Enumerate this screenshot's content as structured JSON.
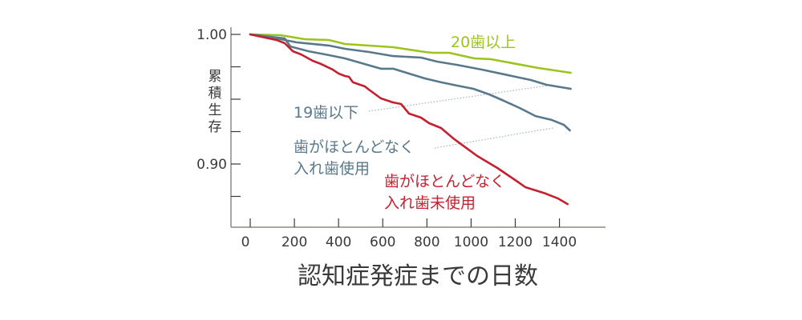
{
  "chart_data": {
    "type": "line",
    "title": "",
    "xlabel": "認知症発症までの日数",
    "ylabel": "累積生存",
    "xlim": [
      -40,
      1600
    ],
    "ylim": [
      0.853,
      1.0
    ],
    "x_ticks": [
      0,
      200,
      400,
      600,
      800,
      1000,
      1200,
      1400
    ],
    "x_tick_labels": [
      "0",
      "200",
      "400",
      "600",
      "800",
      "1000",
      "1200",
      "1400"
    ],
    "y_ticks": [
      1.0,
      0.975,
      0.95,
      0.925,
      0.9,
      0.875
    ],
    "y_tick_labels": [
      "1.00",
      "",
      "",
      "",
      "0.90",
      ""
    ],
    "grid": false,
    "series": [
      {
        "name": "20歯以上",
        "label_lines": [
          "20歯以上"
        ],
        "color": "#9dc31e",
        "x": [
          0,
          138,
          247,
          356,
          429,
          647,
          792,
          828,
          901,
          1015,
          1088,
          1305,
          1451
        ],
        "y": [
          1.0,
          0.9994,
          0.9963,
          0.9957,
          0.9926,
          0.9901,
          0.9864,
          0.9858,
          0.9858,
          0.9815,
          0.9809,
          0.9741,
          0.9704
        ]
      },
      {
        "name": "19歯以下",
        "label_lines": [
          "19歯以下"
        ],
        "color": "#58798b",
        "x": [
          0,
          102,
          211,
          356,
          429,
          538,
          647,
          774,
          846,
          937,
          1051,
          1270,
          1342,
          1451
        ],
        "y": [
          1.0,
          0.9975,
          0.9938,
          0.9914,
          0.9889,
          0.9864,
          0.9833,
          0.9821,
          0.979,
          0.9765,
          0.9728,
          0.9648,
          0.9611,
          0.958
        ]
      },
      {
        "name": "歯がほとんどなく入れ歯使用",
        "label_lines": [
          "歯がほとんどなく",
          "入れ歯使用"
        ],
        "color": "#58798b",
        "x": [
          0,
          156,
          182,
          265,
          356,
          429,
          592,
          647,
          792,
          865,
          937,
          1010,
          1082,
          1140,
          1220,
          1292,
          1365,
          1420,
          1447
        ],
        "y": [
          1.0,
          0.9969,
          0.9907,
          0.987,
          0.984,
          0.9815,
          0.9735,
          0.9735,
          0.966,
          0.963,
          0.9605,
          0.958,
          0.9537,
          0.9494,
          0.9432,
          0.937,
          0.934,
          0.9302,
          0.9259
        ]
      },
      {
        "name": "歯がほとんどなく入れ歯未使用",
        "label_lines": [
          "歯がほとんどなく",
          "入れ歯未使用"
        ],
        "color": "#c4212e",
        "x": [
          0,
          120,
          156,
          193,
          229,
          283,
          320,
          374,
          400,
          429,
          447,
          465,
          519,
          537,
          592,
          646,
          683,
          719,
          773,
          810,
          864,
          919,
          973,
          1028,
          1119,
          1210,
          1246,
          1337,
          1392,
          1437
        ],
        "y": [
          1.0,
          0.9956,
          0.9932,
          0.987,
          0.9846,
          0.9796,
          0.9772,
          0.9728,
          0.9698,
          0.9679,
          0.9673,
          0.963,
          0.9599,
          0.9574,
          0.9506,
          0.9475,
          0.9463,
          0.9389,
          0.9358,
          0.9315,
          0.9278,
          0.9198,
          0.913,
          0.9062,
          0.8969,
          0.8864,
          0.8821,
          0.8772,
          0.8735,
          0.8691
        ]
      }
    ],
    "annotations": [
      {
        "text": "19歯以下",
        "series": 1,
        "leader_to": [
          1370,
          0.9611
        ]
      },
      {
        "text": "歯がほとんどなく入れ歯使用",
        "series": 2,
        "leader_to": [
          1370,
          0.9278
        ]
      }
    ],
    "legend": "inline"
  },
  "colors": {
    "axis": "#8c8a86",
    "text": "#3a3a3a",
    "leader": "#aab8c0"
  }
}
